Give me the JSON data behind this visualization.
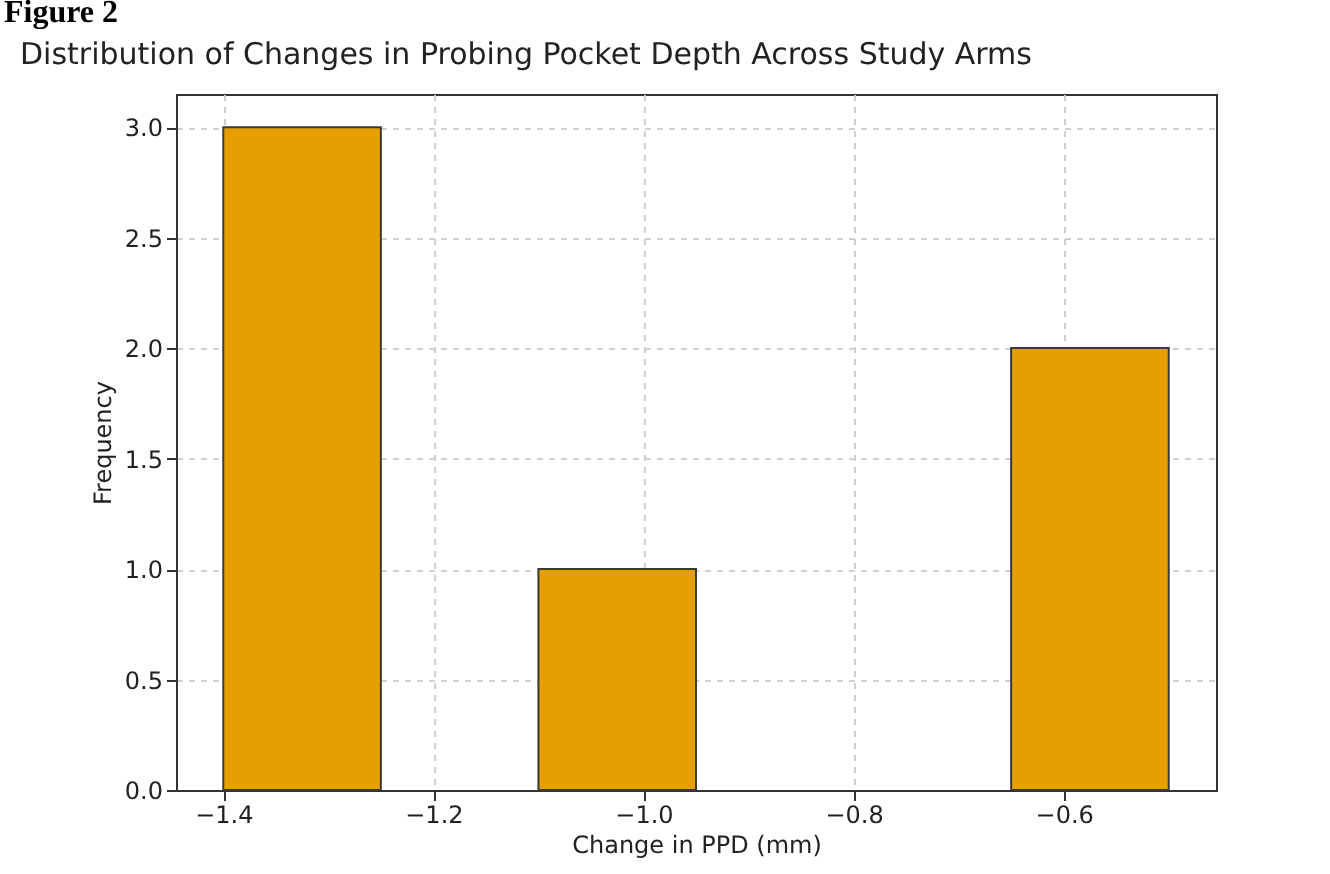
{
  "chart_data": {
    "type": "histogram",
    "title": "Distribution of Changes in Probing Pocket Depth Across Study Arms",
    "xlabel": "Change in PPD (mm)",
    "ylabel": "Frequency",
    "annotations": [
      "Figure 2"
    ],
    "bins": [
      -1.4,
      -1.25,
      -1.1,
      -0.95,
      -0.8,
      -0.65,
      -0.5
    ],
    "values": [
      3,
      0,
      1,
      0,
      0,
      2
    ],
    "color": "#e69f00",
    "xlim": [
      -1.445,
      -0.455
    ],
    "ylim": [
      0,
      3.15
    ],
    "xticks": [
      {
        "value": -1.4,
        "label": "−1.4"
      },
      {
        "value": -1.2,
        "label": "−1.2"
      },
      {
        "value": -1.0,
        "label": "−1.0"
      },
      {
        "value": -0.8,
        "label": "−0.8"
      },
      {
        "value": -0.6,
        "label": "−0.6"
      }
    ],
    "yticks": [
      {
        "value": 0,
        "label": "0.0"
      },
      {
        "value": 0.5,
        "label": "0.5"
      },
      {
        "value": 1,
        "label": "1.0"
      },
      {
        "value": 1.5,
        "label": "1.5"
      },
      {
        "value": 2,
        "label": "2.0"
      },
      {
        "value": 2.5,
        "label": "2.5"
      },
      {
        "value": 3,
        "label": "3.0"
      }
    ],
    "grid": true
  }
}
